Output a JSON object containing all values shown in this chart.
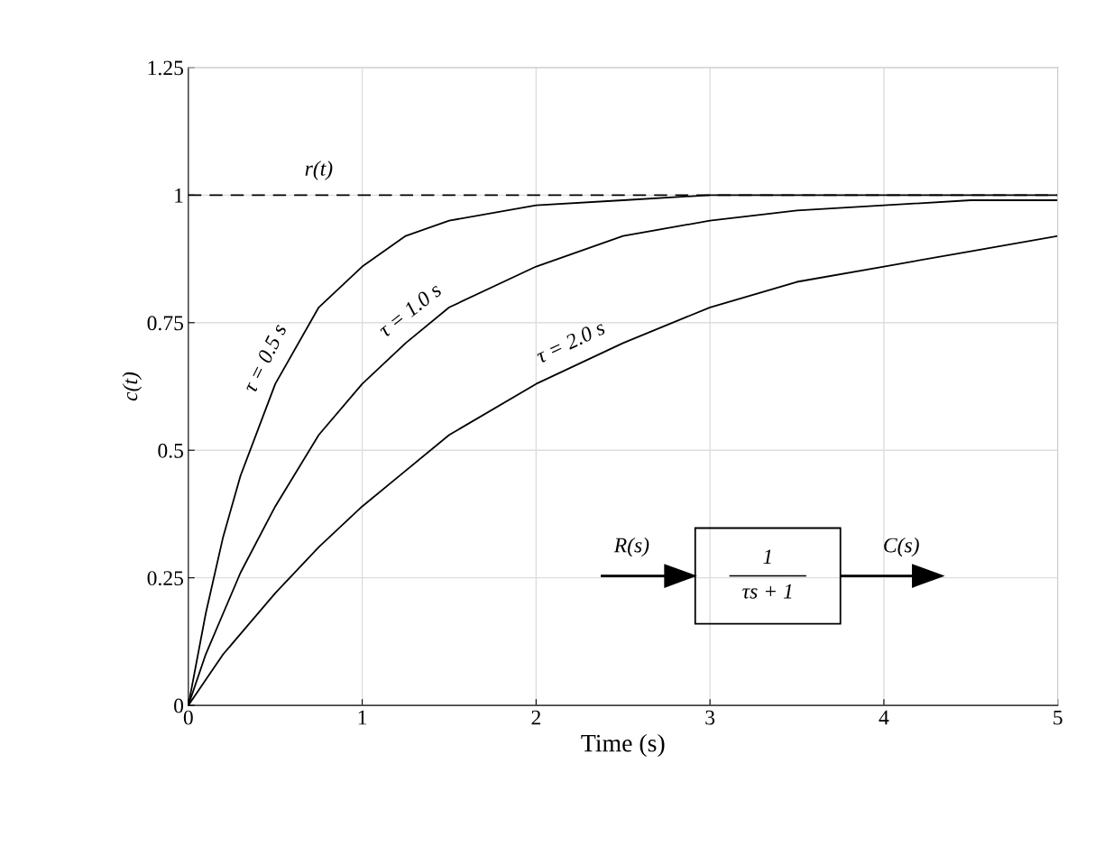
{
  "chart_data": {
    "type": "line",
    "xlabel": "Time (s)",
    "ylabel": "c(t)",
    "x": [
      0,
      0.1,
      0.2,
      0.3,
      0.5,
      0.75,
      1,
      1.25,
      1.5,
      2,
      2.5,
      3,
      3.5,
      4,
      4.5,
      5
    ],
    "series": [
      {
        "name": "τ = 0.5 s",
        "color": "#000000",
        "values": [
          0,
          0.18,
          0.33,
          0.45,
          0.63,
          0.78,
          0.86,
          0.92,
          0.95,
          0.98,
          0.99,
          1.0,
          1.0,
          1.0,
          1.0,
          1.0
        ]
      },
      {
        "name": "τ = 1.0 s",
        "color": "#000000",
        "values": [
          0,
          0.1,
          0.18,
          0.26,
          0.39,
          0.53,
          0.63,
          0.71,
          0.78,
          0.86,
          0.92,
          0.95,
          0.97,
          0.98,
          0.99,
          0.99
        ]
      },
      {
        "name": "τ = 2.0 s",
        "color": "#000000",
        "values": [
          0,
          0.05,
          0.1,
          0.14,
          0.22,
          0.31,
          0.39,
          0.46,
          0.53,
          0.63,
          0.71,
          0.78,
          0.83,
          0.86,
          0.89,
          0.92
        ]
      }
    ],
    "ref_lines": [
      {
        "axis": "y",
        "value": 1,
        "label": "r(t)",
        "line_style": "dashed",
        "color": "#000000"
      }
    ],
    "annotations": [
      "R(s)",
      "1",
      "τs + 1",
      "C(s)"
    ],
    "xlim": [
      0,
      5
    ],
    "xticks": [
      0,
      1,
      2,
      3,
      4,
      5
    ],
    "ylim": [
      0,
      1.25
    ],
    "yticks": [
      0,
      0.25,
      0.5,
      0.75,
      1,
      1.25
    ],
    "grid": true,
    "legend": false,
    "marker": "none",
    "line_style": "solid"
  }
}
